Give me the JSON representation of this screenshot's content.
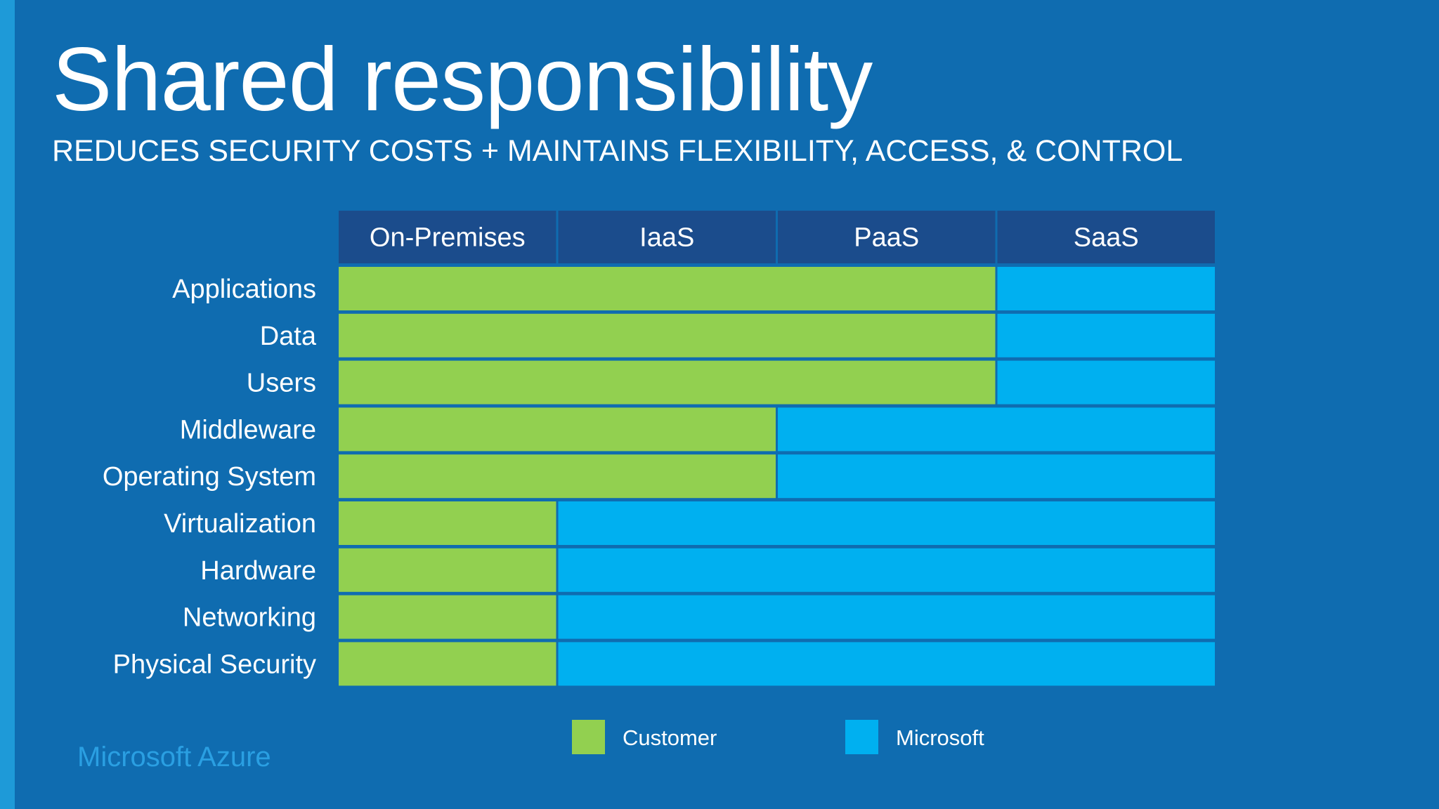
{
  "slide": {
    "title": "Shared responsibility",
    "subtitle": "REDUCES SECURITY COSTS + MAINTAINS FLEXIBILITY, ACCESS, & CONTROL",
    "brand": "Microsoft Azure"
  },
  "colors": {
    "background": "#0f6cb0",
    "header": "#1b4c8c",
    "customer": "#92d050",
    "microsoft": "#00b0f0"
  },
  "diagram": {
    "columns": [
      "On-Premises",
      "IaaS",
      "PaaS",
      "SaaS"
    ],
    "rows": [
      {
        "label": "Applications",
        "customer_columns": 3
      },
      {
        "label": "Data",
        "customer_columns": 3
      },
      {
        "label": "Users",
        "customer_columns": 3
      },
      {
        "label": "Middleware",
        "customer_columns": 2
      },
      {
        "label": "Operating System",
        "customer_columns": 2
      },
      {
        "label": "Virtualization",
        "customer_columns": 1
      },
      {
        "label": "Hardware",
        "customer_columns": 1
      },
      {
        "label": "Networking",
        "customer_columns": 1
      },
      {
        "label": "Physical Security",
        "customer_columns": 1
      }
    ],
    "legend": [
      {
        "label": "Customer",
        "color_key": "customer"
      },
      {
        "label": "Microsoft",
        "color_key": "microsoft"
      }
    ]
  }
}
